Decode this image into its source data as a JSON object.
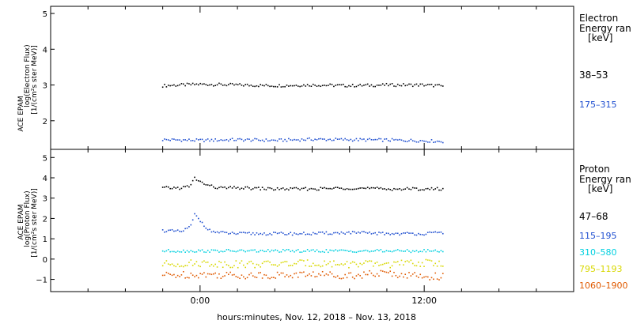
{
  "chart_data": [
    {
      "type": "scatter",
      "title": "",
      "ylabel_lines": [
        "ACE EPAM",
        "log(Electron Flux)",
        "[1/(cm²s ster MeV)]"
      ],
      "ylim": [
        1.2,
        5.2
      ],
      "yticks": [
        2,
        3,
        4,
        5
      ],
      "ytick_labels": [
        "2",
        "3",
        "4",
        "5"
      ],
      "legend": {
        "title_lines": [
          "Electron",
          "Energy ran"
        ],
        "unit": "[keV]"
      },
      "series": [
        {
          "name": "38–53",
          "color": "#000000",
          "x": [
            -2.0,
            0.0,
            2.0,
            4.0,
            6.0,
            8.0,
            10.0,
            12.0,
            13.0
          ],
          "y": [
            2.98,
            3.02,
            3.0,
            2.98,
            3.0,
            2.98,
            3.0,
            3.0,
            2.97
          ]
        },
        {
          "name": "175–315",
          "color": "#1f4fd0",
          "x": [
            -2.0,
            0.0,
            2.0,
            4.0,
            6.0,
            8.0,
            10.0,
            12.0,
            13.0
          ],
          "y": [
            1.47,
            1.45,
            1.47,
            1.45,
            1.48,
            1.47,
            1.46,
            1.44,
            1.42
          ]
        }
      ]
    },
    {
      "type": "scatter",
      "title": "",
      "ylabel_lines": [
        "ACE EPAM",
        "log(Proton Flux)",
        "[1/(cm²s ster MeV)]"
      ],
      "ylim": [
        -1.6,
        5.4
      ],
      "yticks": [
        -1,
        0,
        1,
        2,
        3,
        4,
        5
      ],
      "ytick_labels": [
        "−1",
        "0",
        "1",
        "2",
        "3",
        "4",
        "5"
      ],
      "legend": {
        "title_lines": [
          "Proton",
          "Energy ran"
        ],
        "unit": "[keV]"
      },
      "series": [
        {
          "name": "47–68",
          "color": "#000000",
          "x": [
            -2.0,
            -1.0,
            -0.5,
            -0.3,
            0.0,
            0.5,
            1.0,
            2.0,
            4.0,
            6.0,
            8.0,
            10.0,
            12.0,
            13.0
          ],
          "y": [
            3.5,
            3.5,
            3.6,
            4.0,
            3.8,
            3.6,
            3.5,
            3.5,
            3.45,
            3.45,
            3.5,
            3.45,
            3.45,
            3.45
          ]
        },
        {
          "name": "115–195",
          "color": "#1f4fd0",
          "x": [
            -2.0,
            -1.0,
            -0.5,
            -0.3,
            0.0,
            0.5,
            1.0,
            2.0,
            4.0,
            6.0,
            8.0,
            10.0,
            12.0,
            13.0
          ],
          "y": [
            1.4,
            1.35,
            1.6,
            2.2,
            1.9,
            1.4,
            1.3,
            1.25,
            1.25,
            1.25,
            1.3,
            1.25,
            1.25,
            1.3
          ]
        },
        {
          "name": "310–580",
          "color": "#00d0e0",
          "x": [
            -2.0,
            0.0,
            2.0,
            4.0,
            6.0,
            8.0,
            10.0,
            12.0,
            13.0
          ],
          "y": [
            0.4,
            0.4,
            0.4,
            0.4,
            0.4,
            0.4,
            0.4,
            0.4,
            0.4
          ]
        },
        {
          "name": "795–1193",
          "color": "#d8d800",
          "x": [
            -2.0,
            0.0,
            2.0,
            4.0,
            6.0,
            8.0,
            10.0,
            12.0,
            13.0
          ],
          "y": [
            -0.25,
            -0.2,
            -0.25,
            -0.25,
            -0.2,
            -0.25,
            -0.25,
            -0.2,
            -0.2
          ]
        },
        {
          "name": "1060–1900",
          "color": "#e05a00",
          "x": [
            -2.0,
            0.0,
            2.0,
            4.0,
            6.0,
            8.0,
            10.0,
            12.0,
            13.0
          ],
          "y": [
            -0.8,
            -0.75,
            -0.8,
            -0.8,
            -0.75,
            -0.8,
            -0.7,
            -0.85,
            -0.85
          ]
        }
      ]
    }
  ],
  "shared_x": {
    "xlim": [
      -8,
      20
    ],
    "xticks": [
      0,
      12
    ],
    "xtick_labels": [
      "0:00",
      "12:00"
    ],
    "minor_tick_step": 2,
    "xlabel": "hours:minutes, Nov. 12, 2018 – Nov. 13, 2018"
  }
}
